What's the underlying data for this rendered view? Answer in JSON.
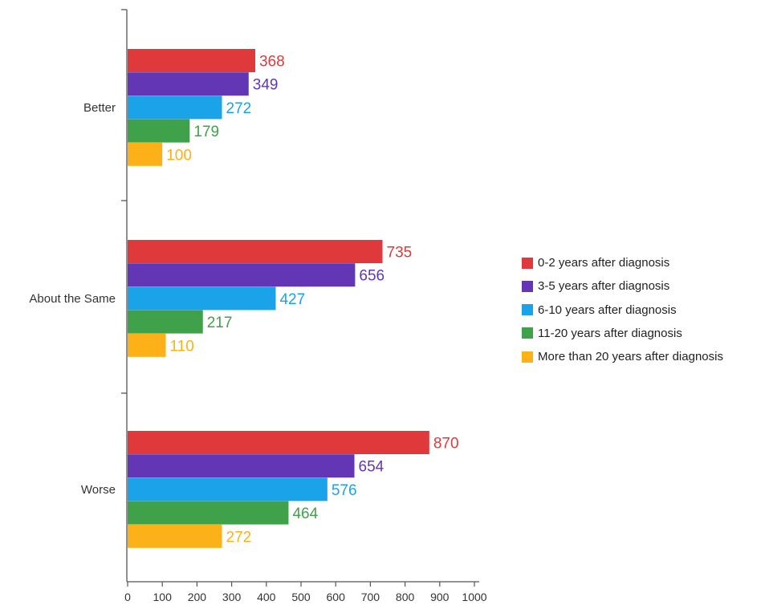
{
  "chart_data": {
    "type": "bar",
    "orientation": "horizontal",
    "categories": [
      "Better",
      "About the Same",
      "Worse"
    ],
    "series": [
      {
        "name": "0-2 years after diagnosis",
        "color": "#e0393b",
        "values": [
          368,
          735,
          870
        ]
      },
      {
        "name": "3-5 years after diagnosis",
        "color": "#6236b4",
        "values": [
          349,
          656,
          654
        ]
      },
      {
        "name": "6-10 years after diagnosis",
        "color": "#1aa3e8",
        "values": [
          272,
          427,
          576
        ]
      },
      {
        "name": "11-20 years after diagnosis",
        "color": "#3fa14a",
        "values": [
          179,
          217,
          464
        ]
      },
      {
        "name": "More than 20 years after diagnosis",
        "color": "#fbb117",
        "values": [
          100,
          110,
          272
        ]
      }
    ],
    "xlim": [
      0,
      1000
    ],
    "xticks": [
      "0",
      "100",
      "200",
      "300",
      "400",
      "500",
      "600",
      "700",
      "800",
      "900",
      "1000"
    ],
    "data_labels": true,
    "grid": false,
    "legend_position": "right"
  }
}
